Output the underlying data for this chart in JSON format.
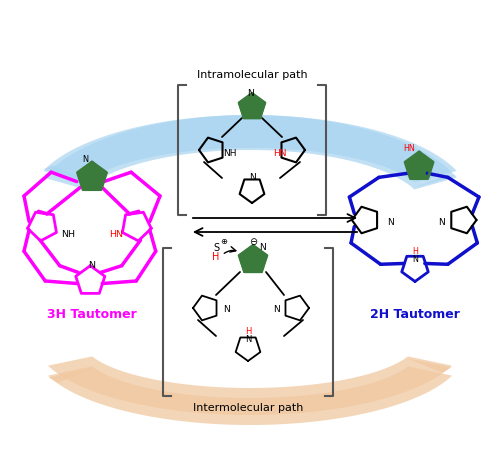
{
  "bg_color": "#ffffff",
  "blue_arrow": "#a8d4f0",
  "peach_arrow": "#f0c8a0",
  "magenta": "#ff00ff",
  "blue": "#1010cc",
  "green": "#3a7a3a",
  "red": "#ff0000",
  "black": "#111111",
  "gray": "#666666",
  "label_3H": "3H Tautomer",
  "label_2H": "2H Tautomer",
  "label_intra": "Intramolecular path",
  "label_inter": "Intermolecular path"
}
